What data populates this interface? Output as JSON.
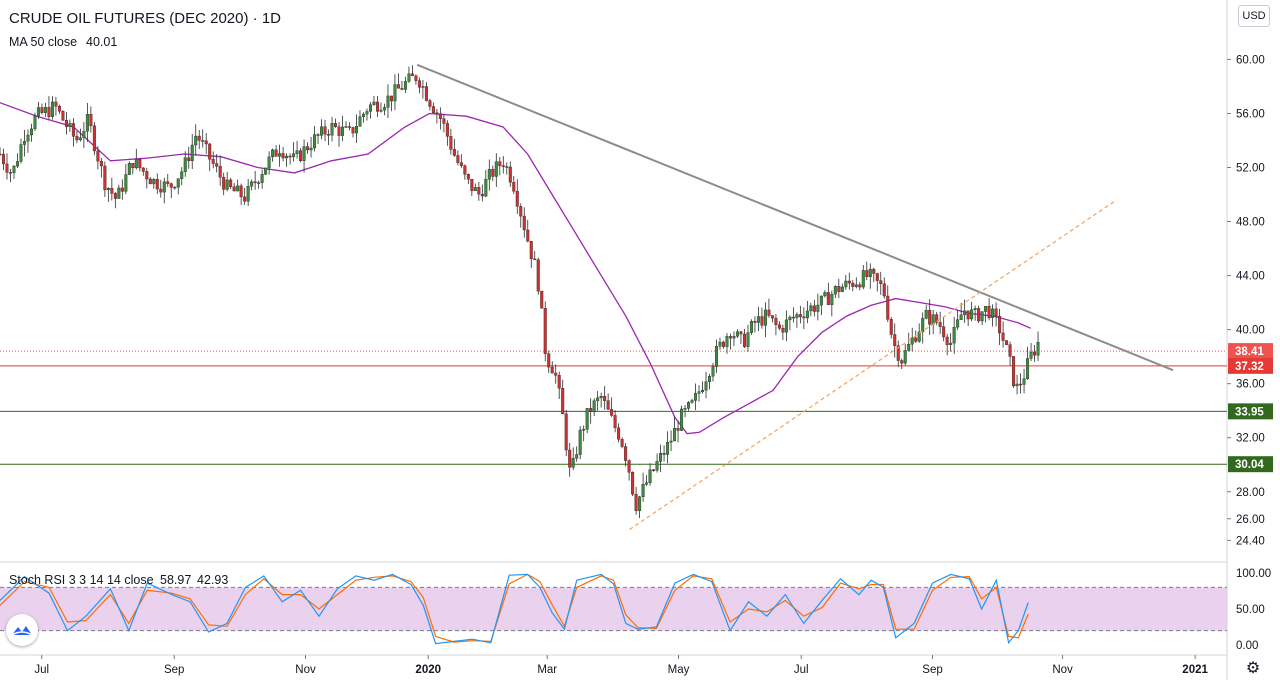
{
  "chart_data": {
    "type": "candlestick",
    "title": "CRUDE OIL FUTURES (DEC 2020) · 1D",
    "currency": "USD",
    "price_axis": {
      "range": [
        22.8,
        64.4
      ],
      "ticks": [
        "60.00",
        "56.00",
        "52.00",
        "48.00",
        "44.00",
        "40.00",
        "36.00",
        "32.00",
        "28.00",
        "26.00",
        "24.40"
      ],
      "tick_values": [
        60,
        56,
        52,
        48,
        44,
        40,
        36,
        32,
        28,
        26,
        24.4
      ]
    },
    "time_axis": {
      "labels": [
        "Jul",
        "Sep",
        "Nov",
        "2020",
        "Mar",
        "May",
        "Jul",
        "Sep",
        "Nov",
        "2021"
      ],
      "bold": [
        "2020",
        "2021"
      ]
    },
    "indicators": {
      "ma": {
        "label": "MA 50 close",
        "value": "40.01",
        "color": "#9c27b0"
      }
    },
    "price_tags": [
      {
        "label": "38.41",
        "value": 38.41,
        "color": "#ef5350",
        "line": "dotted"
      },
      {
        "label": "37.32",
        "value": 37.32,
        "color": "#e53935",
        "line": "solid"
      },
      {
        "label": "33.95",
        "value": 33.95,
        "color": "#33691e",
        "line": "solid"
      },
      {
        "label": "30.04",
        "value": 30.04,
        "color": "#33691e",
        "line": "solid"
      }
    ],
    "trendlines": [
      {
        "name": "resistance",
        "from": {
          "t": 0.34,
          "p": 59.6
        },
        "to": {
          "t": 0.956,
          "p": 37.0
        },
        "color": "#8c8c8c",
        "style": "solid"
      },
      {
        "name": "support",
        "from": {
          "t": 0.513,
          "p": 25.2
        },
        "to": {
          "t": 0.91,
          "p": 49.6
        },
        "color": "#f5a15c",
        "style": "dashed"
      }
    ],
    "stoch_rsi": {
      "label": "Stoch RSI 3 3 14 14 close",
      "k": "58.97",
      "d": "42.93",
      "k_color": "#2196f3",
      "d_color": "#ff6d00",
      "ticks": [
        "100.00",
        "50.00",
        "0.00"
      ],
      "tick_values": [
        100,
        50,
        0
      ],
      "band": [
        20,
        80
      ]
    },
    "colors": {
      "up": "#26a69a",
      "down": "#ef5350",
      "up_body": "#388e3c",
      "down_body": "#d32f2f",
      "ma": "#9c27b0",
      "band": "#e1bee7"
    },
    "price_path": [
      [
        0.0,
        53.0
      ],
      [
        0.01,
        51.5
      ],
      [
        0.02,
        54.5
      ],
      [
        0.03,
        55.8
      ],
      [
        0.045,
        56.5
      ],
      [
        0.055,
        55.0
      ],
      [
        0.062,
        54.0
      ],
      [
        0.072,
        55.5
      ],
      [
        0.085,
        51.0
      ],
      [
        0.095,
        49.6
      ],
      [
        0.108,
        52.5
      ],
      [
        0.125,
        51.0
      ],
      [
        0.138,
        50.5
      ],
      [
        0.15,
        52.0
      ],
      [
        0.16,
        54.5
      ],
      [
        0.172,
        52.5
      ],
      [
        0.185,
        50.5
      ],
      [
        0.2,
        49.8
      ],
      [
        0.215,
        52.0
      ],
      [
        0.228,
        53.5
      ],
      [
        0.24,
        52.5
      ],
      [
        0.255,
        54.0
      ],
      [
        0.27,
        55.0
      ],
      [
        0.285,
        54.5
      ],
      [
        0.3,
        56.5
      ],
      [
        0.315,
        57.0
      ],
      [
        0.33,
        58.2
      ],
      [
        0.34,
        58.8
      ],
      [
        0.35,
        57.0
      ],
      [
        0.36,
        55.5
      ],
      [
        0.37,
        53.0
      ],
      [
        0.38,
        51.0
      ],
      [
        0.39,
        50.0
      ],
      [
        0.4,
        51.5
      ],
      [
        0.41,
        52.5
      ],
      [
        0.418,
        51.0
      ],
      [
        0.425,
        48.5
      ],
      [
        0.432,
        46.0
      ],
      [
        0.438,
        44.0
      ],
      [
        0.445,
        38.0
      ],
      [
        0.452,
        37.0
      ],
      [
        0.458,
        34.0
      ],
      [
        0.465,
        29.0
      ],
      [
        0.472,
        32.0
      ],
      [
        0.48,
        34.0
      ],
      [
        0.49,
        35.0
      ],
      [
        0.5,
        33.0
      ],
      [
        0.506,
        32.0
      ],
      [
        0.512,
        30.0
      ],
      [
        0.518,
        27.0
      ],
      [
        0.526,
        28.5
      ],
      [
        0.535,
        30.0
      ],
      [
        0.545,
        31.5
      ],
      [
        0.555,
        33.5
      ],
      [
        0.565,
        34.5
      ],
      [
        0.575,
        36.5
      ],
      [
        0.585,
        38.5
      ],
      [
        0.595,
        40.0
      ],
      [
        0.605,
        39.0
      ],
      [
        0.615,
        40.5
      ],
      [
        0.625,
        41.0
      ],
      [
        0.635,
        40.0
      ],
      [
        0.645,
        40.8
      ],
      [
        0.658,
        41.5
      ],
      [
        0.67,
        42.0
      ],
      [
        0.682,
        43.0
      ],
      [
        0.695,
        43.5
      ],
      [
        0.708,
        44.0
      ],
      [
        0.72,
        43.0
      ],
      [
        0.728,
        39.0
      ],
      [
        0.735,
        37.8
      ],
      [
        0.745,
        39.5
      ],
      [
        0.755,
        41.0
      ],
      [
        0.765,
        40.5
      ],
      [
        0.775,
        39.0
      ],
      [
        0.785,
        41.5
      ],
      [
        0.795,
        41.0
      ],
      [
        0.805,
        41.6
      ],
      [
        0.815,
        40.0
      ],
      [
        0.822,
        38.0
      ],
      [
        0.828,
        35.5
      ],
      [
        0.834,
        36.5
      ],
      [
        0.84,
        38.0
      ],
      [
        0.846,
        39.0
      ]
    ],
    "ma_path": [
      [
        0.0,
        56.8
      ],
      [
        0.03,
        55.8
      ],
      [
        0.06,
        55.0
      ],
      [
        0.09,
        52.5
      ],
      [
        0.12,
        52.7
      ],
      [
        0.15,
        53.0
      ],
      [
        0.18,
        52.8
      ],
      [
        0.21,
        52.0
      ],
      [
        0.24,
        51.6
      ],
      [
        0.27,
        52.5
      ],
      [
        0.3,
        53.0
      ],
      [
        0.33,
        55.0
      ],
      [
        0.35,
        56.0
      ],
      [
        0.38,
        55.8
      ],
      [
        0.41,
        55.0
      ],
      [
        0.43,
        53.0
      ],
      [
        0.45,
        50.0
      ],
      [
        0.47,
        47.0
      ],
      [
        0.49,
        44.0
      ],
      [
        0.51,
        41.0
      ],
      [
        0.53,
        37.5
      ],
      [
        0.55,
        33.5
      ],
      [
        0.56,
        32.3
      ],
      [
        0.57,
        32.4
      ],
      [
        0.59,
        33.5
      ],
      [
        0.61,
        34.5
      ],
      [
        0.63,
        35.5
      ],
      [
        0.65,
        38.0
      ],
      [
        0.67,
        39.8
      ],
      [
        0.69,
        41.0
      ],
      [
        0.71,
        41.8
      ],
      [
        0.73,
        42.3
      ],
      [
        0.75,
        42.0
      ],
      [
        0.77,
        41.7
      ],
      [
        0.79,
        41.2
      ],
      [
        0.81,
        41.0
      ],
      [
        0.83,
        40.5
      ],
      [
        0.84,
        40.1
      ]
    ],
    "stoch_k_path": [
      [
        0.0,
        62
      ],
      [
        0.02,
        95
      ],
      [
        0.04,
        72
      ],
      [
        0.055,
        20
      ],
      [
        0.07,
        40
      ],
      [
        0.09,
        78
      ],
      [
        0.105,
        20
      ],
      [
        0.12,
        86
      ],
      [
        0.14,
        70
      ],
      [
        0.155,
        60
      ],
      [
        0.17,
        18
      ],
      [
        0.185,
        30
      ],
      [
        0.2,
        80
      ],
      [
        0.215,
        96
      ],
      [
        0.23,
        60
      ],
      [
        0.245,
        76
      ],
      [
        0.26,
        40
      ],
      [
        0.275,
        78
      ],
      [
        0.29,
        96
      ],
      [
        0.305,
        90
      ],
      [
        0.32,
        98
      ],
      [
        0.335,
        84
      ],
      [
        0.345,
        55
      ],
      [
        0.355,
        2
      ],
      [
        0.37,
        5
      ],
      [
        0.385,
        8
      ],
      [
        0.4,
        3
      ],
      [
        0.415,
        97
      ],
      [
        0.43,
        98
      ],
      [
        0.44,
        80
      ],
      [
        0.45,
        45
      ],
      [
        0.46,
        22
      ],
      [
        0.47,
        90
      ],
      [
        0.49,
        98
      ],
      [
        0.5,
        85
      ],
      [
        0.51,
        30
      ],
      [
        0.52,
        22
      ],
      [
        0.535,
        25
      ],
      [
        0.55,
        86
      ],
      [
        0.565,
        98
      ],
      [
        0.58,
        88
      ],
      [
        0.595,
        20
      ],
      [
        0.61,
        60
      ],
      [
        0.625,
        40
      ],
      [
        0.64,
        70
      ],
      [
        0.655,
        30
      ],
      [
        0.67,
        62
      ],
      [
        0.685,
        92
      ],
      [
        0.7,
        70
      ],
      [
        0.71,
        90
      ],
      [
        0.72,
        80
      ],
      [
        0.73,
        10
      ],
      [
        0.745,
        30
      ],
      [
        0.76,
        86
      ],
      [
        0.775,
        98
      ],
      [
        0.79,
        92
      ],
      [
        0.8,
        50
      ],
      [
        0.812,
        90
      ],
      [
        0.822,
        3
      ],
      [
        0.83,
        20
      ],
      [
        0.838,
        59
      ]
    ],
    "stoch_d_path": [
      [
        0.0,
        55
      ],
      [
        0.02,
        88
      ],
      [
        0.04,
        80
      ],
      [
        0.055,
        32
      ],
      [
        0.07,
        34
      ],
      [
        0.09,
        70
      ],
      [
        0.105,
        30
      ],
      [
        0.12,
        76
      ],
      [
        0.14,
        72
      ],
      [
        0.155,
        64
      ],
      [
        0.17,
        28
      ],
      [
        0.185,
        26
      ],
      [
        0.2,
        70
      ],
      [
        0.215,
        92
      ],
      [
        0.23,
        70
      ],
      [
        0.245,
        70
      ],
      [
        0.26,
        50
      ],
      [
        0.275,
        70
      ],
      [
        0.29,
        90
      ],
      [
        0.305,
        94
      ],
      [
        0.32,
        96
      ],
      [
        0.335,
        88
      ],
      [
        0.345,
        66
      ],
      [
        0.355,
        12
      ],
      [
        0.37,
        4
      ],
      [
        0.385,
        6
      ],
      [
        0.4,
        5
      ],
      [
        0.415,
        85
      ],
      [
        0.43,
        98
      ],
      [
        0.44,
        88
      ],
      [
        0.45,
        56
      ],
      [
        0.46,
        26
      ],
      [
        0.47,
        80
      ],
      [
        0.49,
        96
      ],
      [
        0.5,
        90
      ],
      [
        0.51,
        42
      ],
      [
        0.52,
        24
      ],
      [
        0.535,
        23
      ],
      [
        0.55,
        76
      ],
      [
        0.565,
        96
      ],
      [
        0.58,
        92
      ],
      [
        0.595,
        32
      ],
      [
        0.61,
        50
      ],
      [
        0.625,
        46
      ],
      [
        0.64,
        62
      ],
      [
        0.655,
        40
      ],
      [
        0.67,
        52
      ],
      [
        0.685,
        86
      ],
      [
        0.7,
        78
      ],
      [
        0.71,
        84
      ],
      [
        0.72,
        84
      ],
      [
        0.73,
        22
      ],
      [
        0.745,
        22
      ],
      [
        0.76,
        76
      ],
      [
        0.775,
        94
      ],
      [
        0.79,
        95
      ],
      [
        0.8,
        64
      ],
      [
        0.812,
        80
      ],
      [
        0.822,
        12
      ],
      [
        0.83,
        10
      ],
      [
        0.838,
        43
      ]
    ]
  }
}
